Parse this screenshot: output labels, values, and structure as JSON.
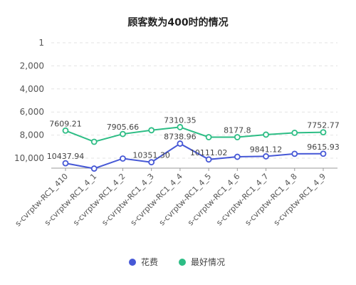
{
  "chart_data": {
    "type": "line",
    "title": "顾客数为400时的情况",
    "categories": [
      "s-cvrptw-RC1_410",
      "s-cvrptw-RC1_4_1",
      "s-cvrptw-RC1_4_2",
      "s-cvrptw-RC1_4_3",
      "s-cvrptw-RC1_4_4",
      "s-cvrptw-RC1_4_5",
      "s-cvrptw-RC1_4_6",
      "s-cvrptw-RC1_4_7",
      "s-cvrptw-RC1_4_8",
      "s-cvrptw-RC1_4_9"
    ],
    "y_axis": {
      "ticks": [
        1,
        2000,
        4000,
        6000,
        8000,
        10000
      ],
      "tick_labels": [
        "1",
        "2,000",
        "4,000",
        "6,000",
        "8,000",
        "10,000"
      ],
      "direction": "inverted",
      "range": [
        1,
        10000
      ]
    },
    "series": [
      {
        "name": "花费",
        "color": "#4658d6",
        "values": [
          10437.94,
          10900,
          10030,
          10351.3,
          8738.96,
          10111.02,
          9880,
          9841.12,
          9620,
          9615.93
        ],
        "data_labels": [
          {
            "index": 0,
            "text": "10437.94"
          },
          {
            "index": 3,
            "text": "10351.30"
          },
          {
            "index": 4,
            "text": "8738.96"
          },
          {
            "index": 5,
            "text": "10111.02"
          },
          {
            "index": 7,
            "text": "9841.12"
          },
          {
            "index": 9,
            "text": "9615.93"
          }
        ]
      },
      {
        "name": "最好情况",
        "color": "#2dbd85",
        "values": [
          7609.21,
          8580,
          7905.66,
          7580,
          7310.35,
          8177.8,
          8177.8,
          7960,
          7800,
          7752.77
        ],
        "data_labels": [
          {
            "index": 0,
            "text": "7609.21"
          },
          {
            "index": 2,
            "text": "7905.66"
          },
          {
            "index": 4,
            "text": "7310.35"
          },
          {
            "index": 6,
            "text": "8177.8"
          },
          {
            "index": 9,
            "text": "7752.77"
          }
        ]
      }
    ],
    "legend": {
      "position": "bottom"
    },
    "grid": true
  }
}
